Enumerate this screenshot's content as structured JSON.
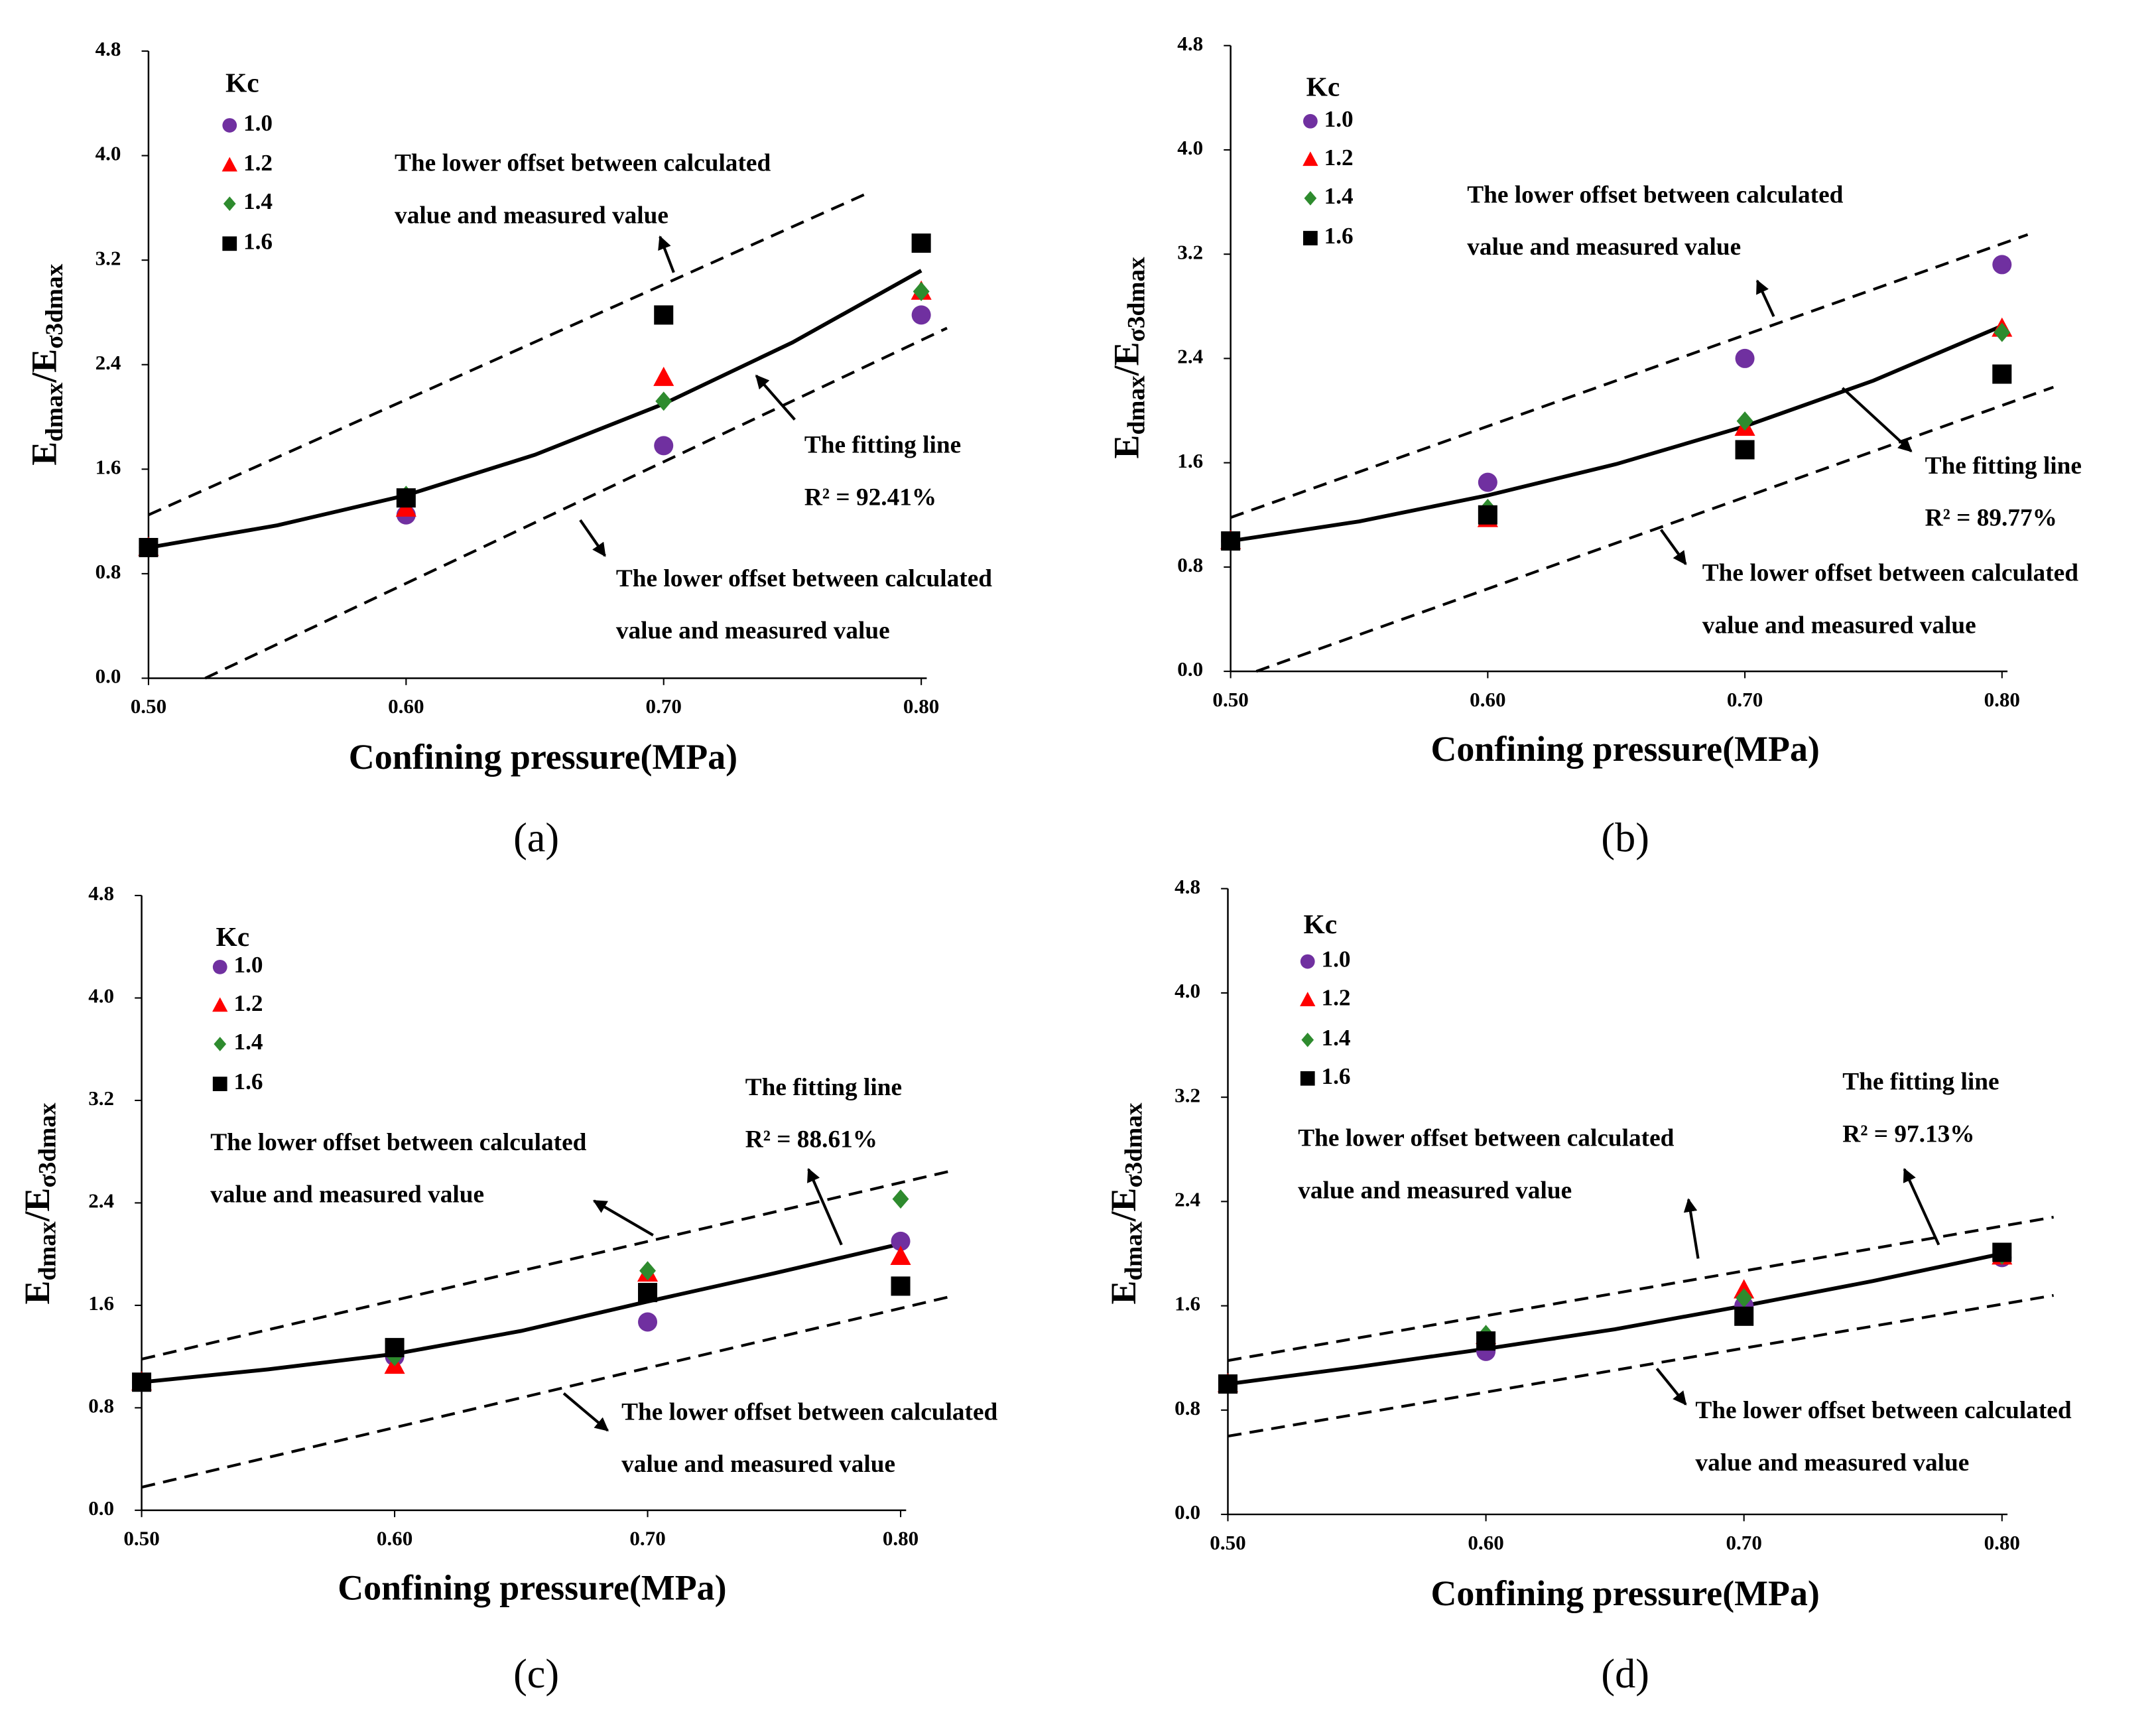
{
  "chart_data": [
    {
      "type": "scatter",
      "panel": "(a)",
      "xlabel": "Confining pressure(MPa)",
      "ylabel": [
        "E",
        "dmax",
        "/E",
        "σ3dmax"
      ],
      "xlim": [
        0.5,
        0.8
      ],
      "ylim": [
        0,
        4.8
      ],
      "xticks": [
        {
          "value": 0.5,
          "label": "0.50"
        },
        {
          "value": 0.6,
          "label": "0.60"
        },
        {
          "value": 0.7,
          "label": "0.70"
        },
        {
          "value": 0.8,
          "label": "0.80"
        }
      ],
      "yticks": [
        {
          "value": 0,
          "label": "0.0"
        },
        0.8,
        1.6,
        2.4,
        3.2,
        {
          "value": 4,
          "label": "4.0"
        },
        4.8
      ],
      "legend_title": "Kc",
      "x": [
        0.5,
        0.6,
        0.7,
        0.8
      ],
      "series": [
        {
          "name": "1.0",
          "color": "#7030a0",
          "marker": "circle",
          "values": [
            1.0,
            1.25,
            1.78,
            2.78
          ]
        },
        {
          "name": "1.2",
          "color": "#ff0000",
          "marker": "triangle",
          "values": [
            1.0,
            1.3,
            2.3,
            2.96
          ]
        },
        {
          "name": "1.4",
          "color": "#2e8b2e",
          "marker": "diamond",
          "values": [
            1.0,
            1.4,
            2.12,
            2.96
          ]
        },
        {
          "name": "1.6",
          "color": "#000000",
          "marker": "square",
          "values": [
            1.0,
            1.38,
            2.78,
            3.33
          ]
        }
      ],
      "fit": {
        "x": [
          0.5,
          0.55,
          0.6,
          0.65,
          0.7,
          0.75,
          0.8
        ],
        "y": [
          1.0,
          1.17,
          1.4,
          1.71,
          2.1,
          2.57,
          3.12
        ]
      },
      "upper": {
        "x": [
          0.5,
          0.78
        ],
        "y": [
          1.25,
          3.72
        ]
      },
      "lower": {
        "x": [
          0.522,
          0.81
        ],
        "y": [
          0,
          2.68
        ]
      },
      "upper_label": [
        "The lower offset between calculated",
        "value and measured value"
      ],
      "fit_label": "The fitting line",
      "r2": "R² = 92.41%",
      "lower_label": [
        "The lower offset between calculated",
        "value and measured value"
      ]
    },
    {
      "type": "scatter",
      "panel": "(b)",
      "xlabel": "Confining pressure(MPa)",
      "ylabel": [
        "E",
        "dmax",
        "/E",
        "σ3dmax"
      ],
      "xlim": [
        0.5,
        0.8
      ],
      "ylim": [
        0,
        4.8
      ],
      "xticks": [
        {
          "value": 0.5,
          "label": "0.50"
        },
        {
          "value": 0.6,
          "label": "0.60"
        },
        {
          "value": 0.7,
          "label": "0.70"
        },
        {
          "value": 0.8,
          "label": "0.80"
        }
      ],
      "yticks": [
        {
          "value": 0,
          "label": "0.0"
        },
        0.8,
        1.6,
        2.4,
        3.2,
        {
          "value": 4,
          "label": "4.0"
        },
        4.8
      ],
      "legend_title": "Kc",
      "x": [
        0.5,
        0.6,
        0.7,
        0.8
      ],
      "series": [
        {
          "name": "1.0",
          "color": "#7030a0",
          "marker": "circle",
          "values": [
            1.0,
            1.45,
            2.4,
            3.12
          ]
        },
        {
          "name": "1.2",
          "color": "#ff0000",
          "marker": "triangle",
          "values": [
            1.0,
            1.17,
            1.87,
            2.63
          ]
        },
        {
          "name": "1.4",
          "color": "#2e8b2e",
          "marker": "diamond",
          "values": [
            1.0,
            1.25,
            1.92,
            2.6
          ]
        },
        {
          "name": "1.6",
          "color": "#000000",
          "marker": "square",
          "values": [
            1.0,
            1.2,
            1.7,
            2.28
          ]
        }
      ],
      "fit": {
        "x": [
          0.5,
          0.55,
          0.6,
          0.65,
          0.7,
          0.75,
          0.8
        ],
        "y": [
          1.0,
          1.15,
          1.35,
          1.59,
          1.88,
          2.23,
          2.65
        ]
      },
      "upper": {
        "x": [
          0.5,
          0.81
        ],
        "y": [
          1.18,
          3.35
        ]
      },
      "lower": {
        "x": [
          0.51,
          0.82
        ],
        "y": [
          0,
          2.18
        ]
      },
      "upper_label": [
        "The lower offset between calculated",
        "value and measured value"
      ],
      "fit_label": "The fitting line",
      "r2": "R² = 89.77%",
      "lower_label": [
        "The lower offset between calculated",
        "value and measured value"
      ]
    },
    {
      "type": "scatter",
      "panel": "(c)",
      "xlabel": "Confining pressure(MPa)",
      "ylabel": [
        "E",
        "dmax",
        "/E",
        "σ3dmax"
      ],
      "xlim": [
        0.5,
        0.8
      ],
      "ylim": [
        0,
        4.8
      ],
      "xticks": [
        {
          "value": 0.5,
          "label": "0.50"
        },
        {
          "value": 0.6,
          "label": "0.60"
        },
        {
          "value": 0.7,
          "label": "0.70"
        },
        {
          "value": 0.8,
          "label": "0.80"
        }
      ],
      "yticks": [
        {
          "value": 0,
          "label": "0.0"
        },
        0.8,
        1.6,
        2.4,
        3.2,
        {
          "value": 4,
          "label": "4.0"
        },
        4.8
      ],
      "legend_title": "Kc",
      "x": [
        0.5,
        0.6,
        0.7,
        0.8
      ],
      "series": [
        {
          "name": "1.0",
          "color": "#7030a0",
          "marker": "circle",
          "values": [
            1.0,
            1.2,
            1.47,
            2.1
          ]
        },
        {
          "name": "1.2",
          "color": "#ff0000",
          "marker": "triangle",
          "values": [
            1.0,
            1.13,
            1.85,
            1.98
          ]
        },
        {
          "name": "1.4",
          "color": "#2e8b2e",
          "marker": "diamond",
          "values": [
            1.0,
            1.2,
            1.87,
            2.43
          ]
        },
        {
          "name": "1.6",
          "color": "#000000",
          "marker": "square",
          "values": [
            1.0,
            1.27,
            1.7,
            1.75
          ]
        }
      ],
      "fit": {
        "x": [
          0.5,
          0.55,
          0.6,
          0.65,
          0.7,
          0.75,
          0.8
        ],
        "y": [
          1.0,
          1.1,
          1.22,
          1.4,
          1.63,
          1.85,
          2.08
        ]
      },
      "upper": {
        "x": [
          0.5,
          0.82
        ],
        "y": [
          1.18,
          2.65
        ]
      },
      "lower": {
        "x": [
          0.5,
          0.82
        ],
        "y": [
          0.18,
          1.67
        ]
      },
      "upper_label": [
        "The lower offset between calculated",
        "value and measured value"
      ],
      "fit_label": "The fitting line",
      "r2": "R² = 88.61%",
      "lower_label": [
        "The lower offset between calculated",
        "value and measured value"
      ]
    },
    {
      "type": "scatter",
      "panel": "(d)",
      "xlabel": "Confining pressure(MPa)",
      "ylabel": [
        "E",
        "dmax",
        "/E",
        "σ3dmax"
      ],
      "xlim": [
        0.5,
        0.8
      ],
      "ylim": [
        0,
        4.8
      ],
      "xticks": [
        {
          "value": 0.5,
          "label": "0.50"
        },
        {
          "value": 0.6,
          "label": "0.60"
        },
        {
          "value": 0.7,
          "label": "0.70"
        },
        {
          "value": 0.8,
          "label": "0.80"
        }
      ],
      "yticks": [
        {
          "value": 0,
          "label": "0.0"
        },
        0.8,
        1.6,
        2.4,
        3.2,
        {
          "value": 4,
          "label": "4.0"
        },
        4.8
      ],
      "legend_title": "Kc",
      "x": [
        0.5,
        0.6,
        0.7,
        0.8
      ],
      "series": [
        {
          "name": "1.0",
          "color": "#7030a0",
          "marker": "circle",
          "values": [
            1.0,
            1.25,
            1.6,
            1.97
          ]
        },
        {
          "name": "1.2",
          "color": "#ff0000",
          "marker": "triangle",
          "values": [
            1.0,
            1.37,
            1.72,
            1.98
          ]
        },
        {
          "name": "1.4",
          "color": "#2e8b2e",
          "marker": "diamond",
          "values": [
            1.0,
            1.38,
            1.66,
            1.99
          ]
        },
        {
          "name": "1.6",
          "color": "#000000",
          "marker": "square",
          "values": [
            1.0,
            1.33,
            1.52,
            2.01
          ]
        }
      ],
      "fit": {
        "x": [
          0.5,
          0.55,
          0.6,
          0.65,
          0.7,
          0.75,
          0.8
        ],
        "y": [
          1.0,
          1.13,
          1.27,
          1.42,
          1.6,
          1.79,
          2.0
        ]
      },
      "upper": {
        "x": [
          0.5,
          0.82
        ],
        "y": [
          1.18,
          2.28
        ]
      },
      "lower": {
        "x": [
          0.5,
          0.82
        ],
        "y": [
          0.6,
          1.68
        ]
      },
      "upper_label": [
        "The lower offset between calculated",
        "value and measured value"
      ],
      "fit_label": "The fitting line",
      "r2": "R² = 97.13%",
      "lower_label": [
        "The lower offset between calculated",
        "value and measured value"
      ]
    }
  ]
}
